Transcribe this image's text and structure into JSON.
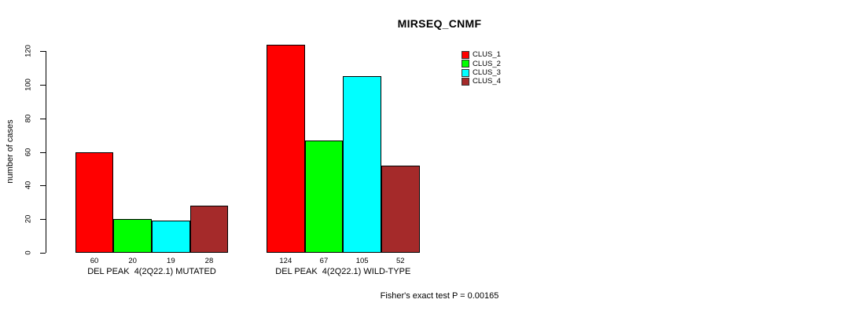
{
  "chart_data": {
    "type": "bar",
    "title": "MIRSEQ_CNMF",
    "ylabel": "number of cases",
    "xlabel": "",
    "ylim": [
      0,
      124
    ],
    "yticks": [
      0,
      20,
      40,
      60,
      80,
      100,
      120
    ],
    "grid": false,
    "legend_position": "top-right",
    "bar_value_labels_shown": true,
    "series": [
      {
        "name": "CLUS_1",
        "color": "#ff0000"
      },
      {
        "name": "CLUS_2",
        "color": "#00ff00"
      },
      {
        "name": "CLUS_3",
        "color": "#00ffff"
      },
      {
        "name": "CLUS_4",
        "color": "#a52a2a"
      }
    ],
    "groups": [
      {
        "label": "DEL PEAK  4(2Q22.1) MUTATED",
        "values": [
          60,
          20,
          19,
          28
        ]
      },
      {
        "label": "DEL PEAK  4(2Q22.1) WILD-TYPE",
        "values": [
          124,
          67,
          105,
          52
        ]
      }
    ],
    "annotation": "Fisher's exact test P = 0.00165"
  }
}
